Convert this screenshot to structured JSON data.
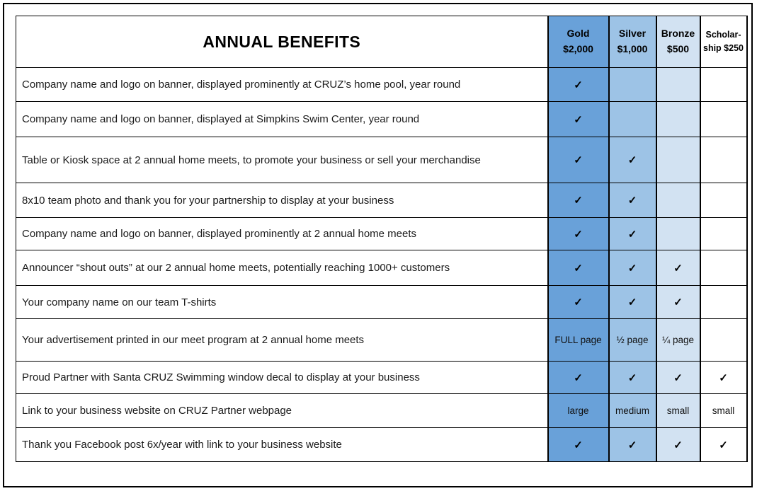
{
  "table": {
    "title": "ANNUAL BENEFITS",
    "check_symbol": "✓",
    "columns": [
      {
        "name": "Gold",
        "amount": "$2,000",
        "color": "#69A1D9"
      },
      {
        "name": "Silver",
        "amount": "$1,000",
        "color": "#9DC3E6"
      },
      {
        "name": "Bronze",
        "amount": "$500",
        "color": "#D2E2F2"
      },
      {
        "name": "Scholar-",
        "amount": "ship $250",
        "color": "#FFFFFF"
      }
    ],
    "rows": [
      {
        "benefit": "Company name and logo on banner, displayed prominently at CRUZ’s home pool, year round",
        "cells": [
          "✓",
          "",
          "",
          ""
        ]
      },
      {
        "benefit": "Company name and logo on banner, displayed at Simpkins Swim Center, year round",
        "cells": [
          "✓",
          "",
          "",
          ""
        ]
      },
      {
        "benefit": "Table or Kiosk space at 2 annual home meets, to promote your business or sell your merchandise",
        "cells": [
          "✓",
          "✓",
          "",
          ""
        ]
      },
      {
        "benefit": "8x10 team photo and thank you for your partnership to display at your business",
        "cells": [
          "✓",
          "✓",
          "",
          ""
        ]
      },
      {
        "benefit": "Company name and logo on banner, displayed prominently at 2 annual home meets",
        "cells": [
          "✓",
          "✓",
          "",
          ""
        ]
      },
      {
        "benefit": "Announcer “shout outs” at our 2 annual home meets, potentially reaching 1000+ customers",
        "cells": [
          "✓",
          "✓",
          "✓",
          ""
        ]
      },
      {
        "benefit": "Your company name on our team T-shirts",
        "cells": [
          "✓",
          "✓",
          "✓",
          ""
        ]
      },
      {
        "benefit": "Your advertisement printed in our meet program at 2 annual home meets",
        "cells": [
          "FULL page",
          "½ page",
          "¼ page",
          ""
        ]
      },
      {
        "benefit": "Proud Partner with Santa CRUZ Swimming window decal to display at your business",
        "cells": [
          "✓",
          "✓",
          "✓",
          "✓"
        ]
      },
      {
        "benefit": "Link to your business website on CRUZ Partner webpage",
        "cells": [
          "large",
          "medium",
          "small",
          "small"
        ]
      },
      {
        "benefit": "Thank you Facebook post 6x/year with link to your business website",
        "cells": [
          "✓",
          "✓",
          "✓",
          "✓"
        ]
      }
    ]
  }
}
